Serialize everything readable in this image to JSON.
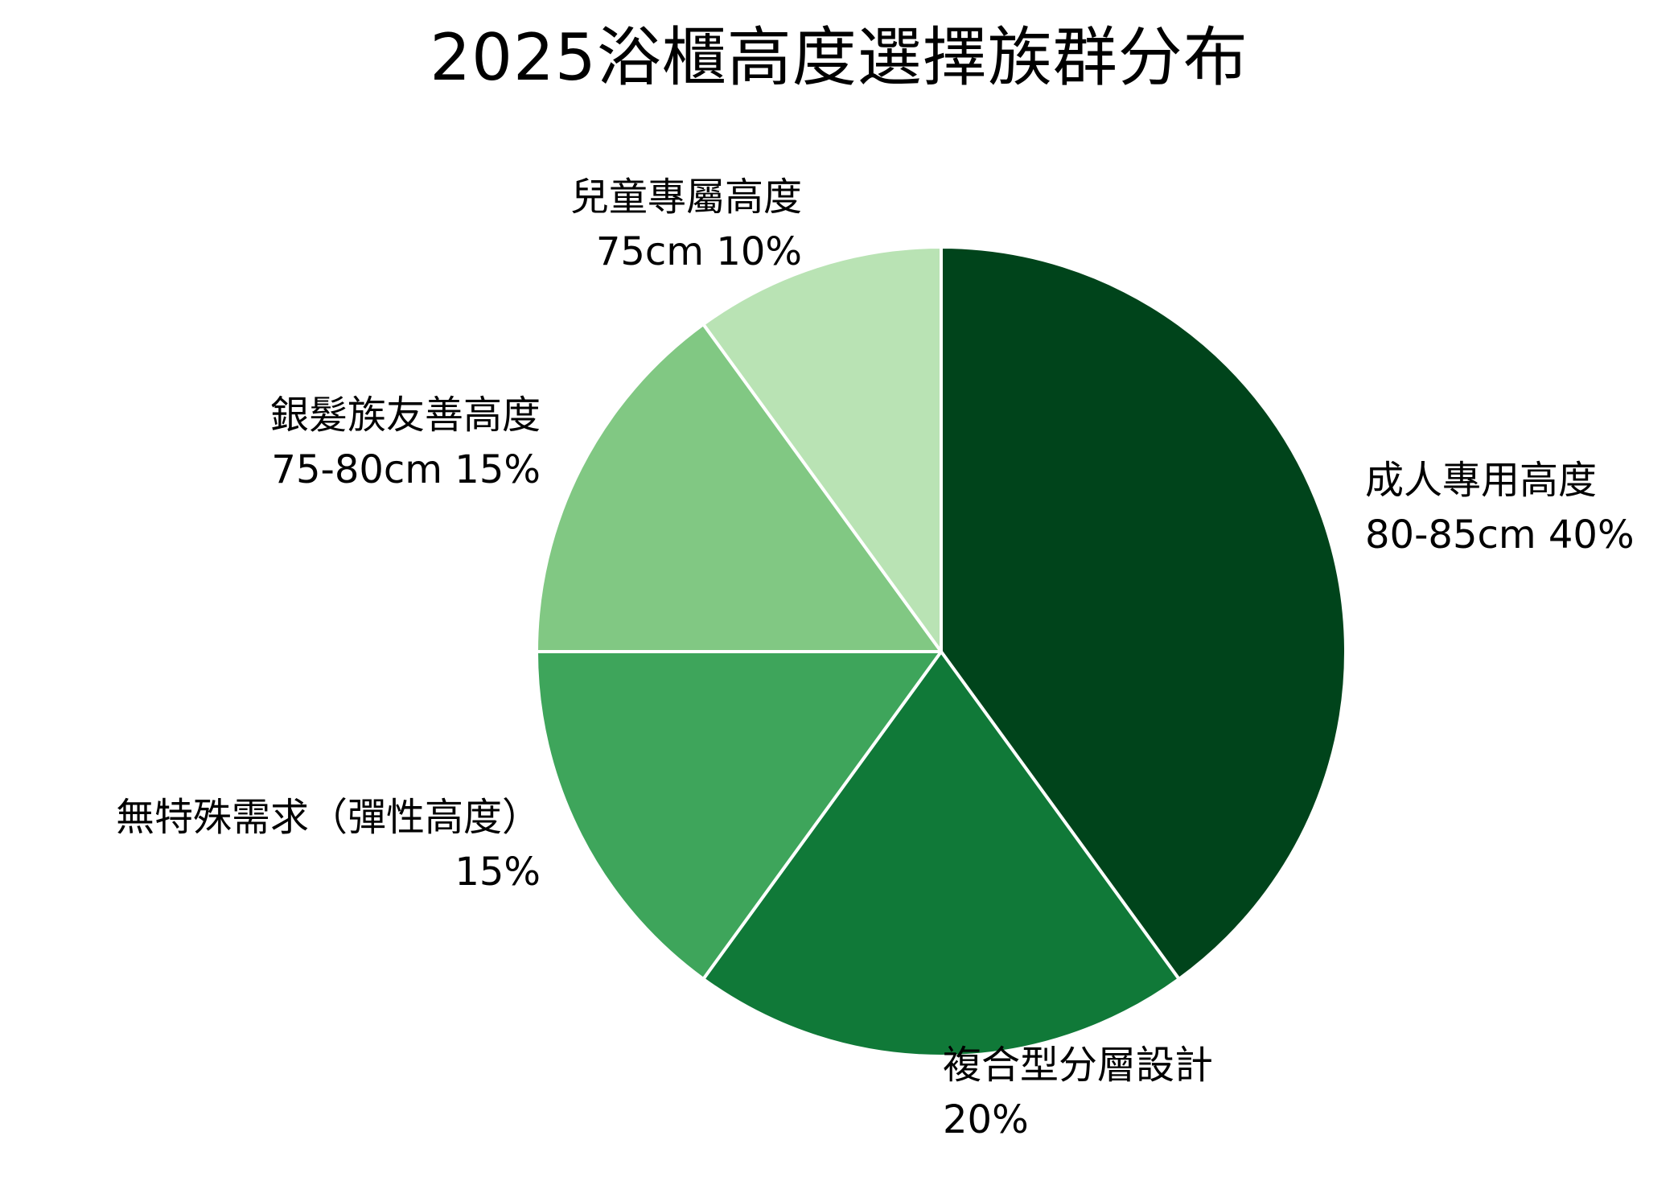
{
  "chart_data": {
    "type": "pie",
    "title": "2025浴櫃高度選擇族群分布",
    "start_angle_deg": 90,
    "direction": "clockwise",
    "slices": [
      {
        "label": "成人專用高度",
        "detail": "80-85cm 40%",
        "value": 40,
        "color": "#00441b"
      },
      {
        "label": "複合型分層設計",
        "detail": "20%",
        "value": 20,
        "color": "#107938"
      },
      {
        "label": "無特殊需求（彈性高度）",
        "detail": "15%",
        "value": 15,
        "color": "#3ea55b"
      },
      {
        "label": "銀髮族友善高度",
        "detail": "75-80cm 15%",
        "value": 15,
        "color": "#81c883"
      },
      {
        "label": "兒童專屬高度",
        "detail": "75cm 10%",
        "value": 10,
        "color": "#b9e3b4"
      }
    ],
    "slice_border_color": "#ffffff"
  }
}
